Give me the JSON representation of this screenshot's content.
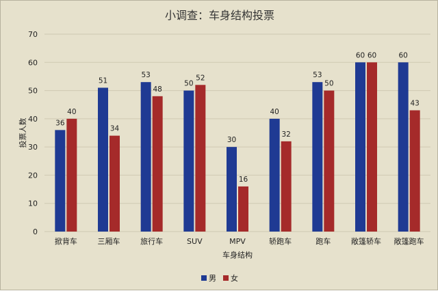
{
  "chart_data": {
    "type": "bar",
    "title": "小调查：车身结构投票",
    "xlabel": "车身结构",
    "ylabel": "投票人数",
    "ylim": [
      0,
      70
    ],
    "yticks": [
      0,
      10,
      20,
      30,
      40,
      50,
      60,
      70
    ],
    "grid": true,
    "legend_position": "bottom",
    "categories": [
      "掀背车",
      "三厢车",
      "旅行车",
      "SUV",
      "MPV",
      "轿跑车",
      "跑车",
      "敞篷轿车",
      "敞篷跑车"
    ],
    "series": [
      {
        "name": "男",
        "color": "#1f3a93",
        "values": [
          36,
          51,
          53,
          50,
          30,
          40,
          53,
          60,
          60
        ]
      },
      {
        "name": "女",
        "color": "#a52a2a",
        "values": [
          40,
          34,
          48,
          52,
          16,
          32,
          50,
          60,
          43
        ]
      }
    ]
  }
}
